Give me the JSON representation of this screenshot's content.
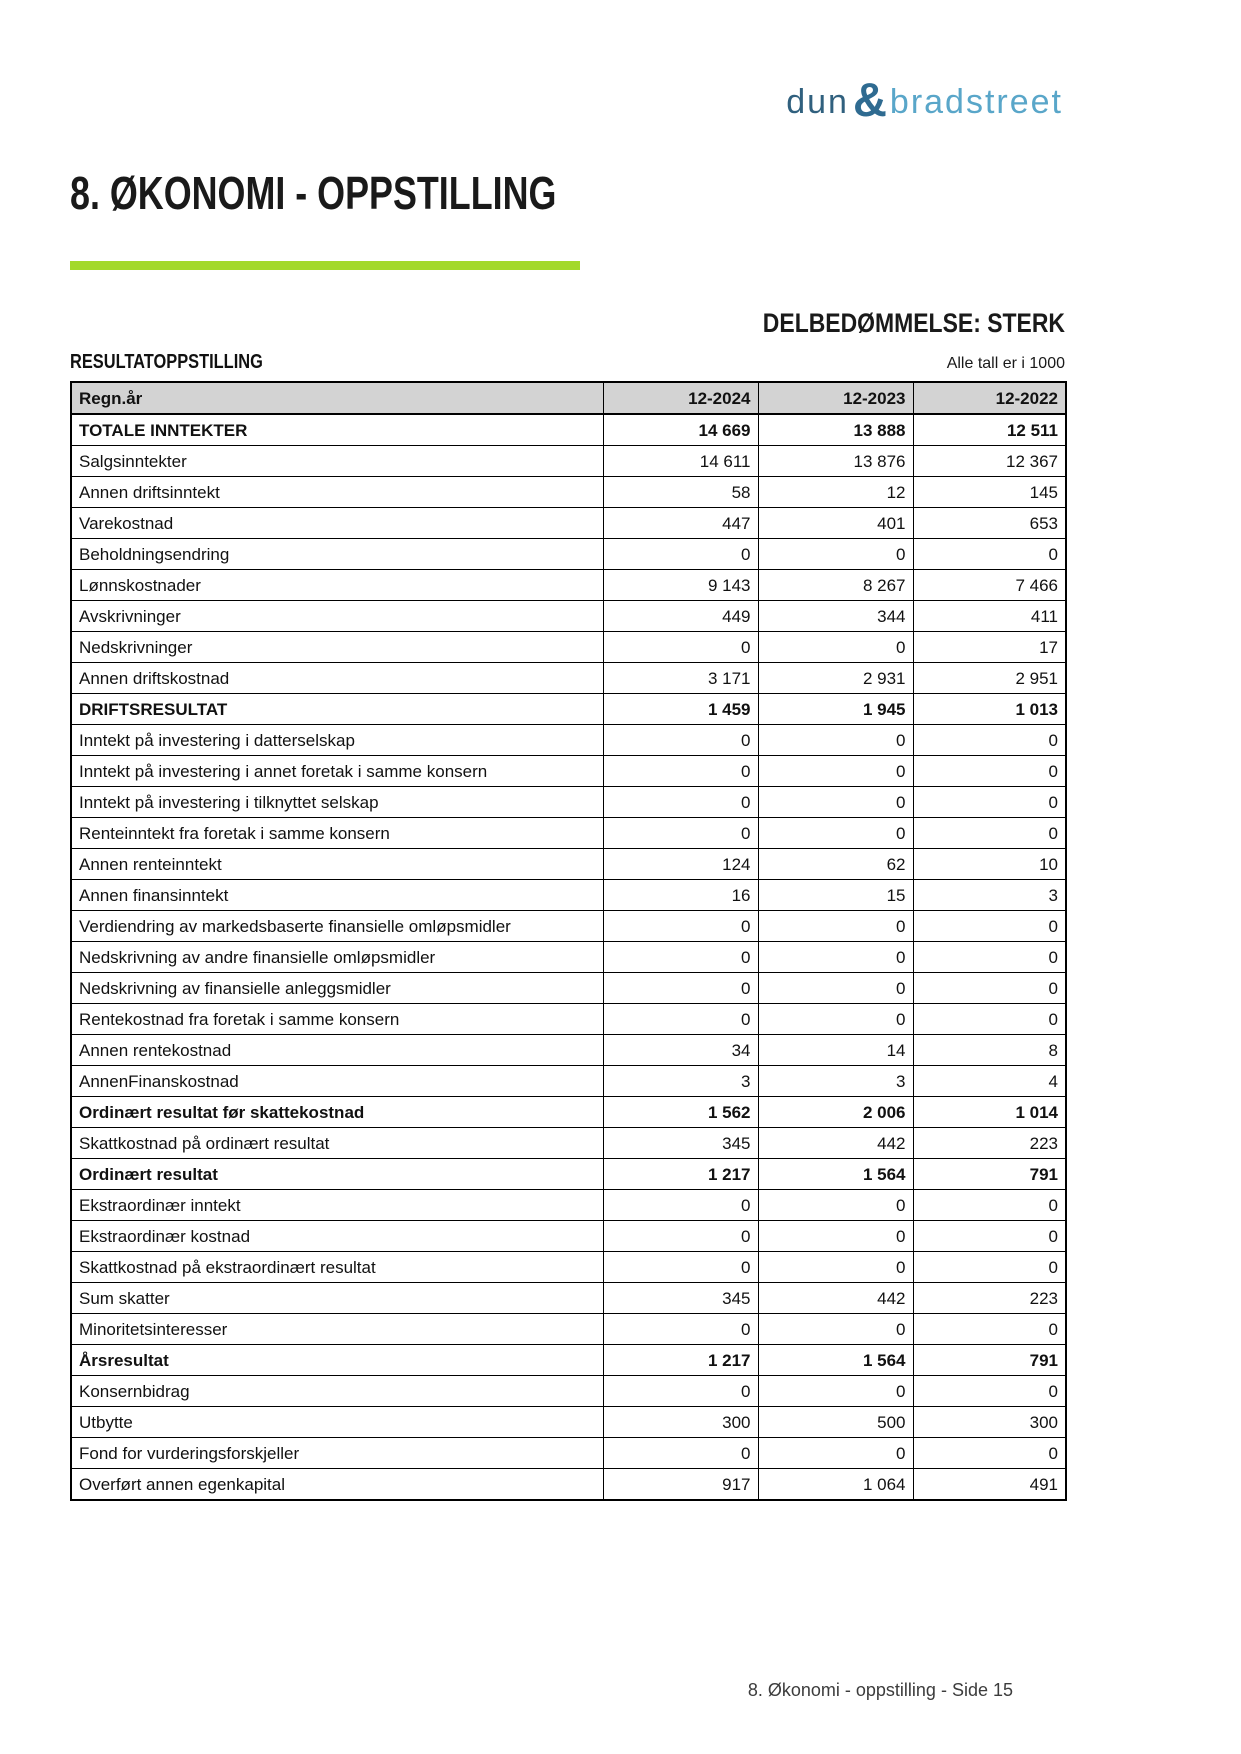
{
  "logo": {
    "part1": "dun",
    "amp": "&",
    "part2": "bradstreet"
  },
  "title": "8. ØKONOMI - OPPSTILLING",
  "assessment": "DELBEDØMMELSE: STERK",
  "section_label": "RESULTATOPPSTILLING",
  "units_note": "Alle tall er i 1000",
  "table": {
    "columns": [
      "Regn.år",
      "12-2024",
      "12-2023",
      "12-2022"
    ],
    "rows": [
      {
        "label": "TOTALE INNTEKTER",
        "values": [
          "14 669",
          "13 888",
          "12 511"
        ],
        "bold": true
      },
      {
        "label": "Salgsinntekter",
        "values": [
          "14 611",
          "13 876",
          "12 367"
        ],
        "bold": false
      },
      {
        "label": "Annen driftsinntekt",
        "values": [
          "58",
          "12",
          "145"
        ],
        "bold": false
      },
      {
        "label": "Varekostnad",
        "values": [
          "447",
          "401",
          "653"
        ],
        "bold": false
      },
      {
        "label": "Beholdningsendring",
        "values": [
          "0",
          "0",
          "0"
        ],
        "bold": false
      },
      {
        "label": "Lønnskostnader",
        "values": [
          "9 143",
          "8 267",
          "7 466"
        ],
        "bold": false
      },
      {
        "label": "Avskrivninger",
        "values": [
          "449",
          "344",
          "411"
        ],
        "bold": false
      },
      {
        "label": "Nedskrivninger",
        "values": [
          "0",
          "0",
          "17"
        ],
        "bold": false
      },
      {
        "label": "Annen driftskostnad",
        "values": [
          "3 171",
          "2 931",
          "2 951"
        ],
        "bold": false
      },
      {
        "label": "DRIFTSRESULTAT",
        "values": [
          "1 459",
          "1 945",
          "1 013"
        ],
        "bold": true
      },
      {
        "label": "Inntekt på investering i datterselskap",
        "values": [
          "0",
          "0",
          "0"
        ],
        "bold": false
      },
      {
        "label": "Inntekt på investering i annet foretak i samme konsern",
        "values": [
          "0",
          "0",
          "0"
        ],
        "bold": false
      },
      {
        "label": "Inntekt på investering i tilknyttet selskap",
        "values": [
          "0",
          "0",
          "0"
        ],
        "bold": false
      },
      {
        "label": "Renteinntekt fra foretak i samme konsern",
        "values": [
          "0",
          "0",
          "0"
        ],
        "bold": false
      },
      {
        "label": "Annen renteinntekt",
        "values": [
          "124",
          "62",
          "10"
        ],
        "bold": false
      },
      {
        "label": "Annen finansinntekt",
        "values": [
          "16",
          "15",
          "3"
        ],
        "bold": false
      },
      {
        "label": "Verdiendring av markedsbaserte finansielle omløpsmidler",
        "values": [
          "0",
          "0",
          "0"
        ],
        "bold": false
      },
      {
        "label": "Nedskrivning av andre finansielle omløpsmidler",
        "values": [
          "0",
          "0",
          "0"
        ],
        "bold": false
      },
      {
        "label": "Nedskrivning av finansielle anleggsmidler",
        "values": [
          "0",
          "0",
          "0"
        ],
        "bold": false
      },
      {
        "label": "Rentekostnad fra foretak i samme konsern",
        "values": [
          "0",
          "0",
          "0"
        ],
        "bold": false
      },
      {
        "label": "Annen rentekostnad",
        "values": [
          "34",
          "14",
          "8"
        ],
        "bold": false
      },
      {
        "label": "AnnenFinanskostnad",
        "values": [
          "3",
          "3",
          "4"
        ],
        "bold": false
      },
      {
        "label": "Ordinært resultat før skattekostnad",
        "values": [
          "1 562",
          "2 006",
          "1 014"
        ],
        "bold": true
      },
      {
        "label": "Skattkostnad på ordinært resultat",
        "values": [
          "345",
          "442",
          "223"
        ],
        "bold": false
      },
      {
        "label": "Ordinært resultat",
        "values": [
          "1 217",
          "1 564",
          "791"
        ],
        "bold": true
      },
      {
        "label": "Ekstraordinær inntekt",
        "values": [
          "0",
          "0",
          "0"
        ],
        "bold": false
      },
      {
        "label": "Ekstraordinær kostnad",
        "values": [
          "0",
          "0",
          "0"
        ],
        "bold": false
      },
      {
        "label": "Skattkostnad på ekstraordinært resultat",
        "values": [
          "0",
          "0",
          "0"
        ],
        "bold": false
      },
      {
        "label": "Sum skatter",
        "values": [
          "345",
          "442",
          "223"
        ],
        "bold": false
      },
      {
        "label": "Minoritetsinteresser",
        "values": [
          "0",
          "0",
          "0"
        ],
        "bold": false
      },
      {
        "label": "Årsresultat",
        "values": [
          "1 217",
          "1 564",
          "791"
        ],
        "bold": true
      },
      {
        "label": "Konsernbidrag",
        "values": [
          "0",
          "0",
          "0"
        ],
        "bold": false
      },
      {
        "label": "Utbytte",
        "values": [
          "300",
          "500",
          "300"
        ],
        "bold": false
      },
      {
        "label": "Fond for vurderingsforskjeller",
        "values": [
          "0",
          "0",
          "0"
        ],
        "bold": false
      },
      {
        "label": "Overført annen egenkapital",
        "values": [
          "917",
          "1 064",
          "491"
        ],
        "bold": false
      }
    ]
  },
  "footer": "8. Økonomi - oppstilling - Side 15",
  "colors": {
    "accent_green": "#a3d92b",
    "header_gray": "#d3d3d3",
    "logo_dark": "#30607e",
    "logo_mid": "#2f6b91",
    "logo_light": "#59a6c9",
    "footer_gray": "#3c3c3c",
    "border_black": "#000000"
  }
}
